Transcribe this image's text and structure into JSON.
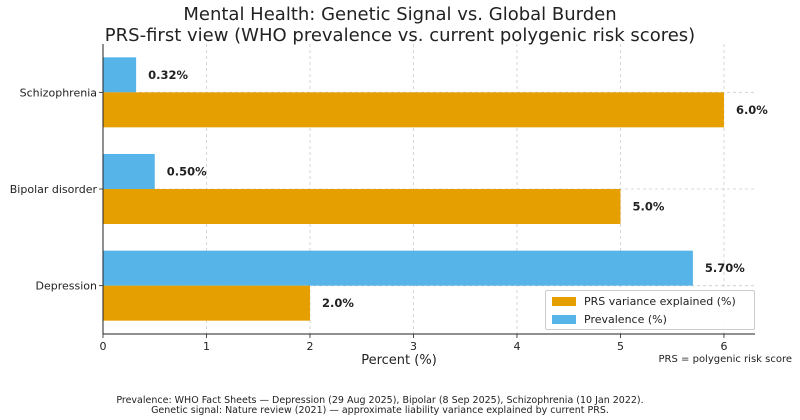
{
  "chart_data": {
    "type": "bar",
    "orientation": "horizontal",
    "title": "Mental Health: Genetic Signal vs. Global Burden",
    "subtitle": "PRS-first view (WHO prevalence vs. current polygenic risk scores)",
    "xlabel": "Percent (%)",
    "ylabel": "",
    "xlim": [
      0,
      6.3
    ],
    "xticks": [
      "0",
      "1",
      "2",
      "3",
      "4",
      "5",
      "6"
    ],
    "categories": [
      "Schizophrenia",
      "Bipolar disorder",
      "Depression"
    ],
    "series": [
      {
        "name": "PRS variance explained (%)",
        "color": "#E69F00",
        "values": [
          6.0,
          5.0,
          2.0
        ],
        "labels": [
          "6.0%",
          "5.0%",
          "2.0%"
        ]
      },
      {
        "name": "Prevalence (%)",
        "color": "#56B4E9",
        "values": [
          0.32,
          0.5,
          5.7
        ],
        "labels": [
          "0.32%",
          "0.50%",
          "5.70%"
        ]
      }
    ],
    "grid": true,
    "legend_position": "lower-right"
  },
  "annotations": {
    "prs_note": "PRS = polygenic risk score",
    "source_line1": "Prevalence: WHO Fact Sheets — Depression (29 Aug 2025), Bipolar (8 Sep 2025), Schizophrenia (10 Jan 2022).",
    "source_line2": "Genetic signal: Nature review (2021) — approximate liability variance explained by current PRS."
  }
}
